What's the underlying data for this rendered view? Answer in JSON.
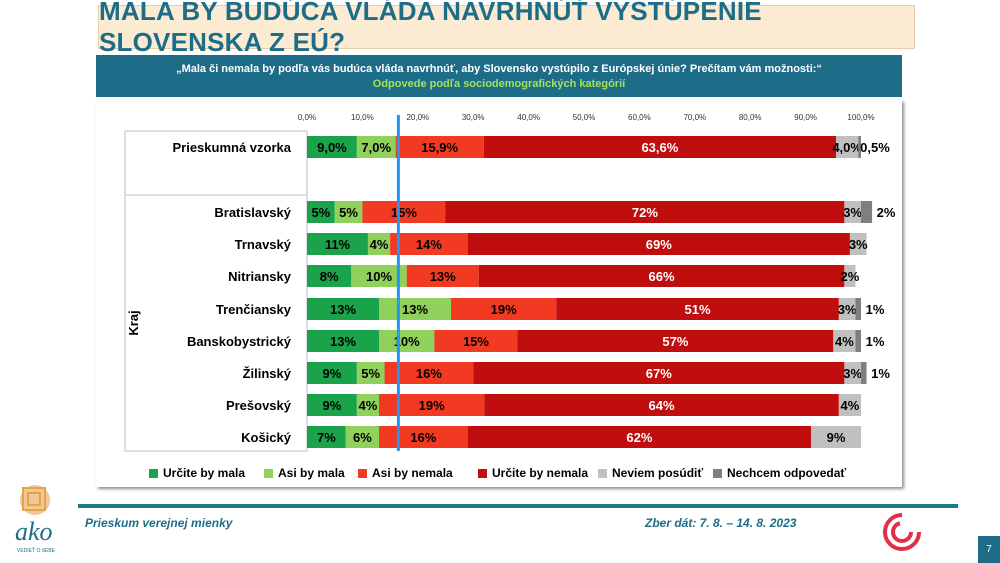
{
  "title": "MALA BY BUDÚCA VLÁDA NAVRHNÚŤ VYSTÚPENIE SLOVENSKA Z EÚ?",
  "question": "„Mala či nemala by podľa vás budúca vláda navrhnúť, aby Slovensko vystúpilo z Európskej únie? Prečítam vám možnosti:“",
  "subtitle": "Odpovede podľa sociodemografických kategórií",
  "footer_left": "Prieskum verejnej mienky",
  "footer_right": "Zber dát: 7. 8. – 14. 8. 2023",
  "page_number": "7",
  "logo_text": "ako",
  "logo_tagline": "VEDIEŤ O SEBE",
  "colors": {
    "title": "#1e6d88",
    "accent_green": "#a6e05a",
    "marker_line": "#2196f3"
  },
  "chart_data": {
    "type": "bar",
    "orientation": "horizontal",
    "stacked": true,
    "xlim": [
      0,
      100
    ],
    "x_ticks": [
      "0,0%",
      "10,0%",
      "20,0%",
      "30,0%",
      "40,0%",
      "50,0%",
      "60,0%",
      "70,0%",
      "80,0%",
      "90,0%",
      "100,0%"
    ],
    "marker_line_x": 16.5,
    "group_label": "Kraj",
    "legend_position": "bottom",
    "series": [
      {
        "name": "Určite by mala",
        "color": "#1aa34a"
      },
      {
        "name": "Asi by mala",
        "color": "#8fd15a"
      },
      {
        "name": "Asi by nemala",
        "color": "#f23a22"
      },
      {
        "name": "Určite by nemala",
        "color": "#c00d0d"
      },
      {
        "name": "Neviem posúdiť",
        "color": "#c0c0c0"
      },
      {
        "name": "Nechcem odpovedať",
        "color": "#7f7f7f"
      }
    ],
    "rows": [
      {
        "category": "Prieskumná vzorka",
        "values": [
          9.0,
          7.0,
          15.9,
          63.6,
          4.0,
          0.5
        ],
        "labels": [
          "9,0%",
          "7,0%",
          "15,9%",
          "63,6%",
          "4,0%",
          "0,5%"
        ]
      },
      {
        "category": "Bratislavský",
        "values": [
          5,
          5,
          15,
          72,
          3,
          2
        ],
        "labels": [
          "5%",
          "5%",
          "15%",
          "72%",
          "3%",
          "2%"
        ]
      },
      {
        "category": "Trnavský",
        "values": [
          11,
          4,
          14,
          69,
          3,
          0
        ],
        "labels": [
          "11%",
          "4%",
          "14%",
          "69%",
          "3%",
          ""
        ]
      },
      {
        "category": "Nitriansky",
        "values": [
          8,
          10,
          13,
          66,
          2,
          0
        ],
        "labels": [
          "8%",
          "10%",
          "13%",
          "66%",
          "2%",
          ""
        ]
      },
      {
        "category": "Trenčiansky",
        "values": [
          13,
          13,
          19,
          51,
          3,
          1
        ],
        "labels": [
          "13%",
          "13%",
          "19%",
          "51%",
          "3%",
          "1%"
        ]
      },
      {
        "category": "Banskobystrický",
        "values": [
          13,
          10,
          15,
          57,
          4,
          1
        ],
        "labels": [
          "13%",
          "10%",
          "15%",
          "57%",
          "4%",
          "1%"
        ]
      },
      {
        "category": "Žilinský",
        "values": [
          9,
          5,
          16,
          67,
          3,
          1
        ],
        "labels": [
          "9%",
          "5%",
          "16%",
          "67%",
          "3%",
          "1%"
        ]
      },
      {
        "category": "Prešovský",
        "values": [
          9,
          4,
          19,
          64,
          4,
          0
        ],
        "labels": [
          "9%",
          "4%",
          "19%",
          "64%",
          "4%",
          ""
        ]
      },
      {
        "category": "Košický",
        "values": [
          7,
          6,
          16,
          62,
          9,
          0
        ],
        "labels": [
          "7%",
          "6%",
          "16%",
          "62%",
          "9%",
          ""
        ]
      }
    ]
  }
}
